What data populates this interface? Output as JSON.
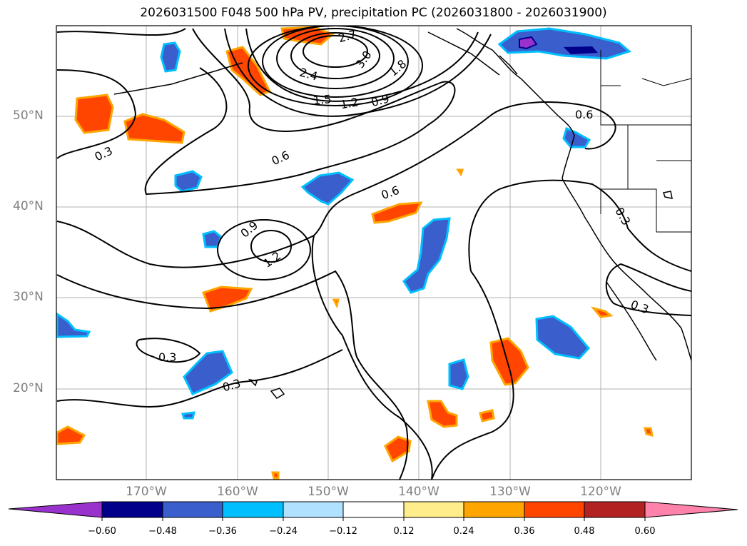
{
  "title": "2026031500 F048 500 hPa PV, precipitation PC (2026031800 - 2026031900)",
  "lat_labels": [
    "50°N",
    "40°N",
    "30°N",
    "20°N"
  ],
  "lon_labels": [
    "170°W",
    "160°W",
    "150°W",
    "140°W",
    "130°W",
    "120°W"
  ],
  "contour_labels": [
    "0.3",
    "0.6",
    "0.9",
    "1.2",
    "1.5",
    "1.8",
    "2.4",
    "2.7",
    "3.0"
  ],
  "colorbar": {
    "ticks": [
      "−0.60",
      "−0.48",
      "−0.36",
      "−0.24",
      "−0.12",
      "0.12",
      "0.24",
      "0.36",
      "0.48",
      "0.60"
    ],
    "colors": [
      "#9932CC",
      "#00008B",
      "#3A5FCD",
      "#00BFFF",
      "#B0E2FF",
      "#FFFFFF",
      "#FFEC8B",
      "#FFA500",
      "#FF4500",
      "#B22222",
      "#FF82AB"
    ]
  }
}
